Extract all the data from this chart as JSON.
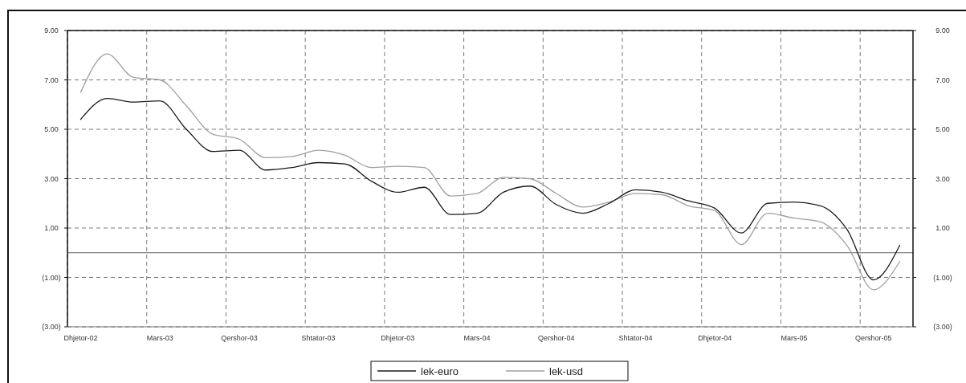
{
  "chart_data": {
    "type": "line",
    "categories": [
      "Dhjetor-02",
      null,
      null,
      "Mars-03",
      null,
      null,
      "Qershor-03",
      null,
      null,
      "Shtator-03",
      null,
      null,
      "Dhjetor-03",
      null,
      null,
      "Mars-04",
      null,
      null,
      "Qershor-04",
      null,
      null,
      "Shtator-04",
      null,
      null,
      "Dhjetor-04",
      null,
      null,
      "Mars-05",
      null,
      null,
      "Qershor-05",
      null
    ],
    "series": [
      {
        "name": "lek-euro",
        "color": "#1a1a1a",
        "values": [
          5.4,
          6.25,
          6.1,
          6.15,
          5.0,
          4.1,
          4.15,
          3.35,
          3.45,
          3.65,
          3.6,
          2.9,
          2.45,
          2.65,
          1.55,
          1.6,
          2.45,
          2.7,
          1.95,
          1.6,
          2.0,
          2.55,
          2.45,
          2.1,
          1.8,
          0.8,
          2.0,
          2.05,
          1.9,
          0.95,
          -1.1,
          0.3
        ]
      },
      {
        "name": "lek-usd",
        "color": "#a0a0a0",
        "values": [
          6.5,
          8.05,
          7.1,
          7.0,
          5.95,
          4.8,
          4.6,
          3.85,
          3.9,
          4.15,
          3.95,
          3.45,
          3.5,
          3.45,
          2.3,
          2.4,
          3.05,
          3.0,
          2.4,
          1.85,
          2.05,
          2.4,
          2.35,
          1.9,
          1.7,
          0.33,
          1.6,
          1.4,
          1.25,
          0.3,
          -1.5,
          -0.35
        ]
      }
    ],
    "ylim": [
      -3,
      9
    ],
    "yticks": [
      {
        "value": 9,
        "label": "9.00"
      },
      {
        "value": 7,
        "label": "7.00"
      },
      {
        "value": 5,
        "label": "5.00"
      },
      {
        "value": 3,
        "label": "3.00"
      },
      {
        "value": 1,
        "label": "1.00"
      },
      {
        "value": -1,
        "label": "(1.00)"
      },
      {
        "value": -3,
        "label": "(3.00)"
      }
    ],
    "y2lim": [
      -3,
      9
    ],
    "y2ticks": [
      {
        "value": 9,
        "label": "9.00"
      },
      {
        "value": 7,
        "label": "7.00"
      },
      {
        "value": 5,
        "label": "5.00"
      },
      {
        "value": 3,
        "label": "3.00"
      },
      {
        "value": 1,
        "label": "1.00"
      },
      {
        "value": -1,
        "label": "(1.00)"
      },
      {
        "value": -3,
        "label": "(3.00)"
      }
    ],
    "ref_lines": [
      {
        "axis": "y",
        "value": 0,
        "color": "#666666",
        "line_style": "solid"
      }
    ],
    "grid": true,
    "legend": "bottom",
    "line_style": "solid"
  }
}
